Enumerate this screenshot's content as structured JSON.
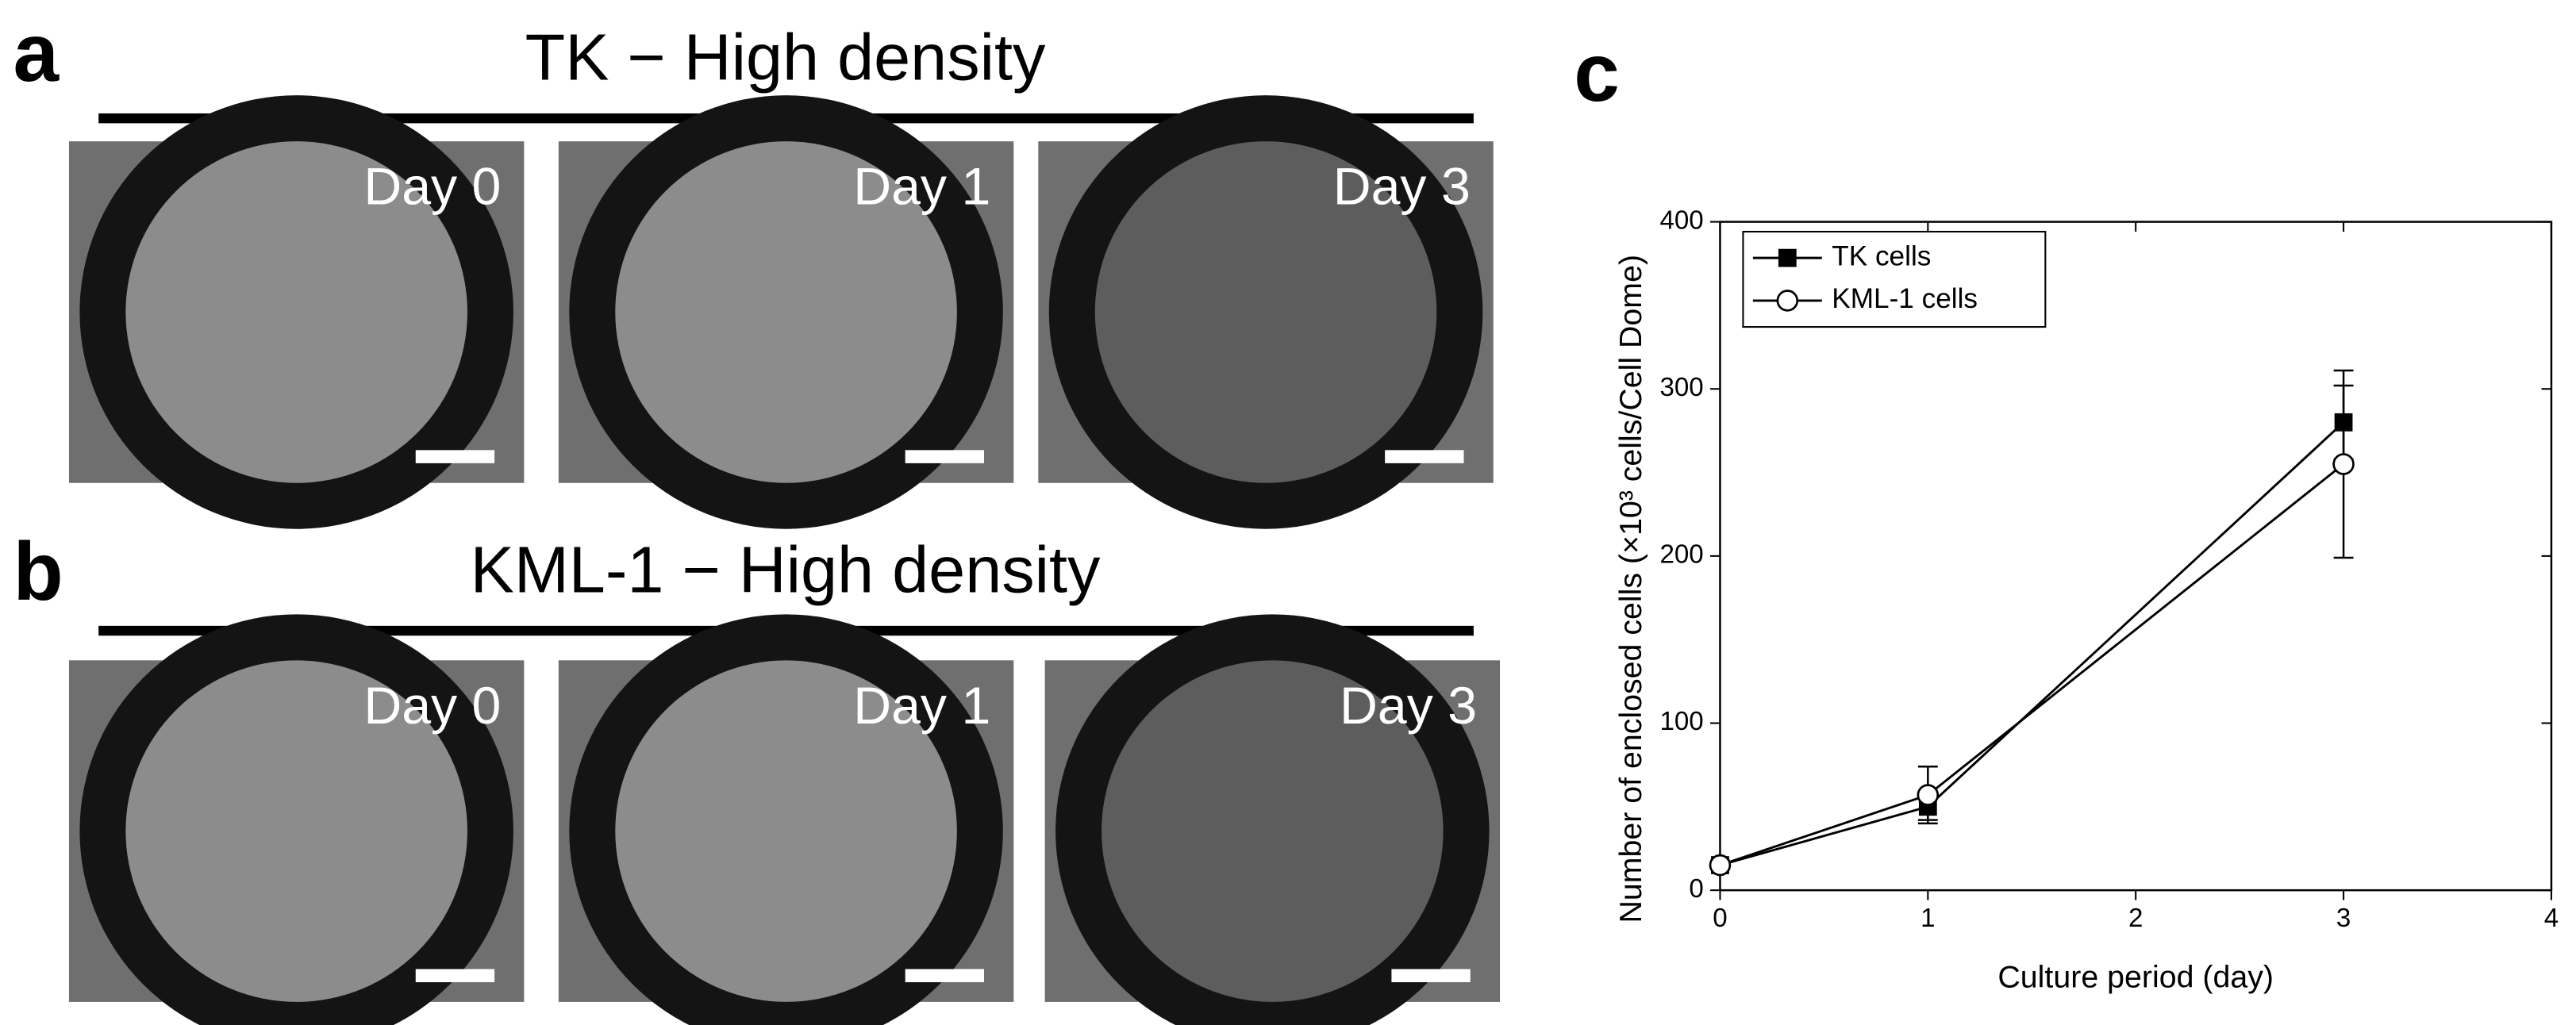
{
  "panels": [
    {
      "label": "a",
      "title": "TK − High density",
      "images": [
        "Day 0",
        "Day 1",
        "Day 3"
      ]
    },
    {
      "label": "b",
      "title": "KML-1 − High density",
      "images": [
        "Day 0",
        "Day 1",
        "Day 3"
      ]
    }
  ],
  "chart_data": {
    "label": "c",
    "type": "line",
    "x_label": "Culture period (day)",
    "y_label": "Number of enclosed cells (×10³ cells/Cell Dome)",
    "x": [
      0,
      1,
      3
    ],
    "xlim": [
      0,
      4
    ],
    "xticks": [
      0,
      1,
      2,
      3,
      4
    ],
    "ylim": [
      0,
      400
    ],
    "yticks": [
      0,
      100,
      200,
      300,
      400
    ],
    "legend": "upper left",
    "series": [
      {
        "name": "TK cells",
        "color": "#000000",
        "marker": "square",
        "values": [
          15,
          50,
          280
        ],
        "errors": [
          null,
          8,
          22
        ]
      },
      {
        "name": "KML-1 cells",
        "color": "#000000",
        "marker": "open-circle",
        "values": [
          15,
          57,
          255
        ],
        "errors": [
          null,
          17,
          56
        ]
      }
    ]
  }
}
